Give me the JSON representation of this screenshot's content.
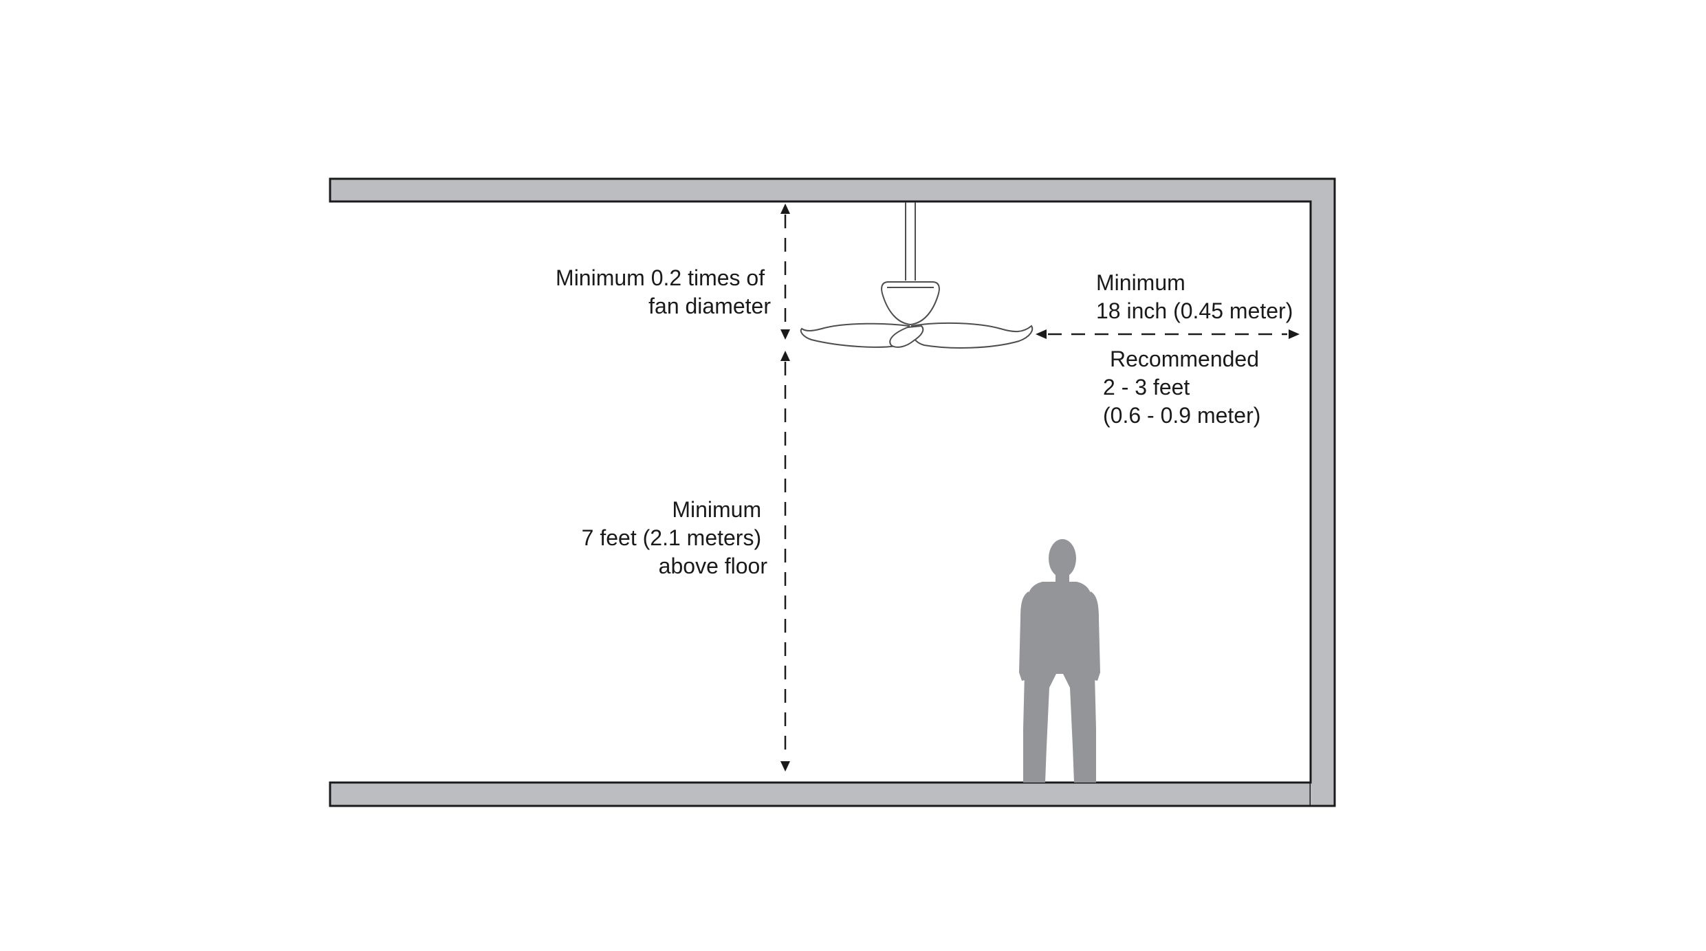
{
  "diagram": {
    "ceiling_clearance": {
      "line1": "Minimum 0.2 times of",
      "line2": "fan diameter"
    },
    "floor_clearance": {
      "line1": "Minimum",
      "line2": "7 feet  (2.1 meters)",
      "line3": "above floor"
    },
    "wall_clearance_minimum": {
      "line1": "Minimum",
      "line2": "18 inch (0.45 meter)"
    },
    "wall_clearance_recommended": {
      "line1": "Recommended",
      "line2": "2  - 3 feet",
      "line3": "(0.6 - 0.9 meter)"
    },
    "colors": {
      "wall_fill": "#bcbdc0",
      "wall_stroke": "#1a1a1a",
      "person_fill": "#939598",
      "fan_stroke": "#4d4d4d",
      "dimension_line": "#1a1a1a"
    }
  }
}
